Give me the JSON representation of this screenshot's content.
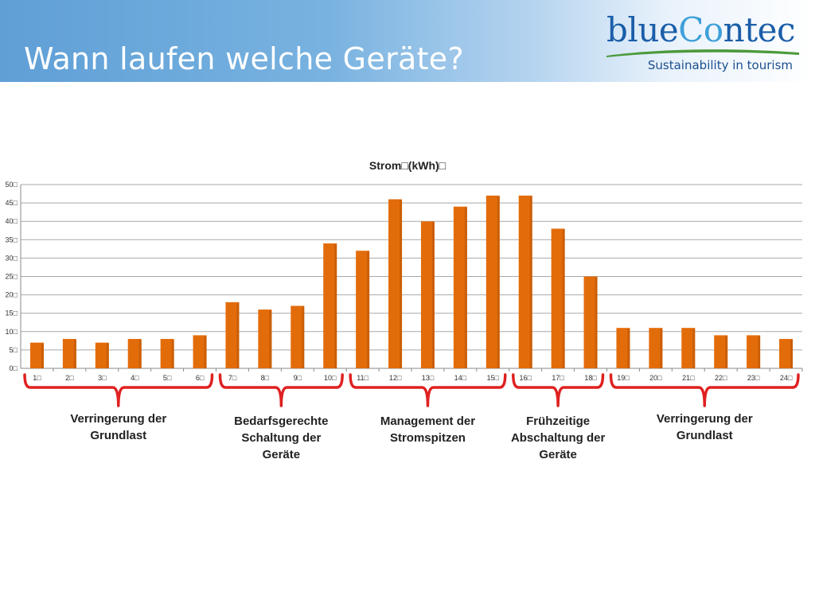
{
  "header": {
    "title": "Wann laufen welche Geräte?"
  },
  "logo": {
    "word_a": "blue",
    "word_b": "Co",
    "word_c": "ntec",
    "tagline": "Sustainability in tourism"
  },
  "chart_data": {
    "type": "bar",
    "title": "Strom□(kWh)□",
    "categories": [
      "1□",
      "2□",
      "3□",
      "4□",
      "5□",
      "6□",
      "7□",
      "8□",
      "9□",
      "10□",
      "11□",
      "12□",
      "13□",
      "14□",
      "15□",
      "16□",
      "17□",
      "18□",
      "19□",
      "20□",
      "21□",
      "22□",
      "23□",
      "24□"
    ],
    "values": [
      7,
      8,
      7,
      8,
      8,
      9,
      18,
      16,
      17,
      34,
      32,
      46,
      40,
      44,
      47,
      47,
      38,
      25,
      11,
      11,
      11,
      9,
      9,
      8
    ],
    "ylim": [
      0,
      50
    ],
    "yticks": [
      0,
      5,
      10,
      15,
      20,
      25,
      30,
      35,
      40,
      45,
      50
    ],
    "ytick_labels": [
      "0□",
      "5□",
      "10□",
      "15□",
      "20□",
      "25□",
      "30□",
      "35□",
      "40□",
      "45□",
      "50□"
    ],
    "grid": true,
    "bar_color": "#e36c0a",
    "annotations": [
      {
        "label": "Verringerung der\nGrundlast",
        "from": 1,
        "to": 6
      },
      {
        "label": "Bedarfsgerechte\nSchaltung der\nGeräte",
        "from": 7,
        "to": 10
      },
      {
        "label": "Management der\nStromspitzen",
        "from": 11,
        "to": 15
      },
      {
        "label": "Frühzeitige\nAbschaltung der\nGeräte",
        "from": 16,
        "to": 18
      },
      {
        "label": "Verringerung der\nGrundlast",
        "from": 19,
        "to": 24
      }
    ]
  },
  "colors": {
    "header_start": "#5f9fd6",
    "bracket": "#e02020",
    "logo_blue": "#1b5ea9",
    "logo_light": "#3da0d8",
    "swoosh": "#4c9a3c"
  }
}
